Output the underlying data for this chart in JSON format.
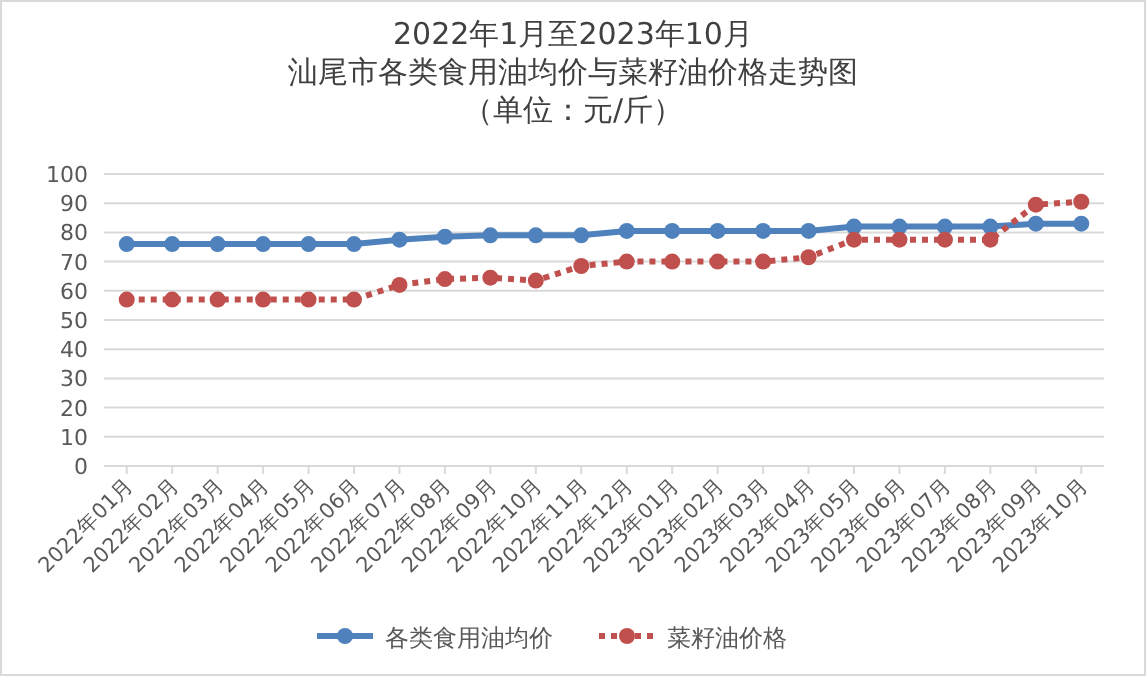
{
  "chart_data": {
    "type": "line",
    "title": "2022年1月至2023年10月",
    "subtitle": "汕尾市各类食用油均价与菜籽油价格走势图",
    "annotations": [
      "（单位：元/斤）"
    ],
    "categories": [
      "2022年01月",
      "2022年02月",
      "2022年03月",
      "2022年04月",
      "2022年05月",
      "2022年06月",
      "2022年07月",
      "2022年08月",
      "2022年09月",
      "2022年10月",
      "2022年11月",
      "2022年12月",
      "2023年01月",
      "2023年02月",
      "2023年03月",
      "2023年04月",
      "2023年05月",
      "2023年06月",
      "2023年07月",
      "2023年08月",
      "2023年09月",
      "2023年10月"
    ],
    "series": [
      {
        "name": "各类食用油均价",
        "color": "#4f81bd",
        "line_style": "solid",
        "values": [
          76,
          76,
          76,
          76,
          76,
          76,
          77.5,
          78.5,
          79,
          79,
          79,
          80.5,
          80.5,
          80.5,
          80.5,
          80.5,
          82,
          82,
          82,
          82,
          83,
          83
        ]
      },
      {
        "name": "菜籽油价格",
        "color": "#c0504d",
        "line_style": "dotted",
        "values": [
          57,
          57,
          57,
          57,
          57,
          57,
          62,
          64,
          64.5,
          63.5,
          68.5,
          70,
          70,
          70,
          70,
          71.5,
          77.5,
          77.5,
          77.5,
          77.5,
          89.5,
          90.5
        ]
      }
    ],
    "marker": "circle",
    "ylim": [
      0,
      100
    ],
    "yticks": [
      0,
      10,
      20,
      30,
      40,
      50,
      60,
      70,
      80,
      90,
      100
    ],
    "grid": "y",
    "legend": "bottom"
  }
}
